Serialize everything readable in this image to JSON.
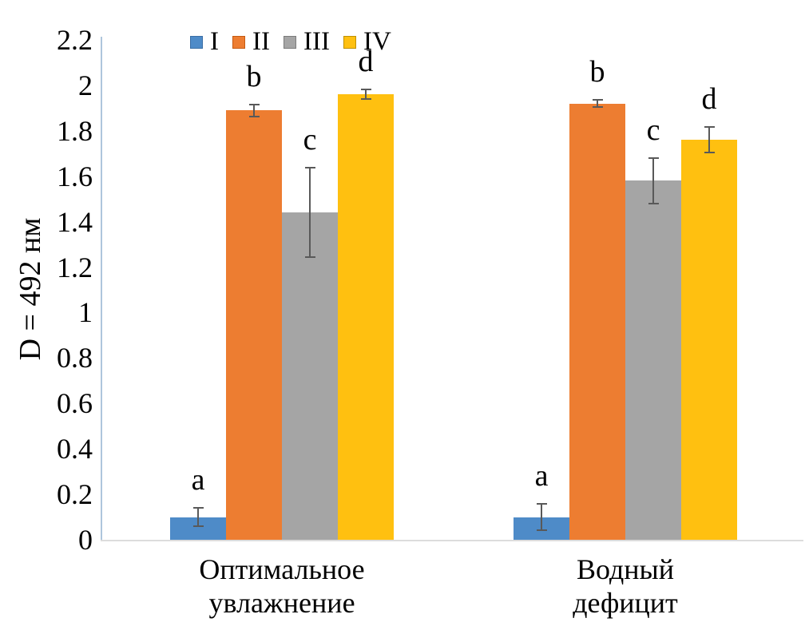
{
  "chart_data": {
    "type": "bar",
    "title": "",
    "xlabel": "",
    "ylabel": "D = 492 нм",
    "ylim": [
      0,
      2.2
    ],
    "ytick_step": 0.2,
    "ytick_labels": [
      "0",
      "0.2",
      "0.4",
      "0.6",
      "0.8",
      "1",
      "1.2",
      "1.4",
      "1.6",
      "1.8",
      "2",
      "2.2"
    ],
    "grid": false,
    "legend_position": "top",
    "categories": [
      [
        "Оптимальное",
        "увлажнение"
      ],
      [
        "Водный",
        "дефицит"
      ]
    ],
    "series": [
      {
        "name": "I",
        "color": "#4E8BC8",
        "edge": "#3A6EA5",
        "values": [
          0.1,
          0.1
        ],
        "errors": [
          0.045,
          0.06
        ],
        "letters": [
          "a",
          "a"
        ]
      },
      {
        "name": "II",
        "color": "#ED7D31",
        "edge": "#C55A11",
        "values": [
          1.89,
          1.92
        ],
        "errors": [
          0.03,
          0.02
        ],
        "letters": [
          "b",
          "b"
        ]
      },
      {
        "name": "III",
        "color": "#A5A5A5",
        "edge": "#7B7B7B",
        "values": [
          1.44,
          1.58
        ],
        "errors": [
          0.2,
          0.105
        ],
        "letters": [
          "c",
          "c"
        ]
      },
      {
        "name": "IV",
        "color": "#FFC010",
        "edge": "#BF9000",
        "values": [
          1.96,
          1.76
        ],
        "errors": [
          0.025,
          0.06
        ],
        "letters": [
          "d",
          "d"
        ]
      }
    ],
    "error_bar_color": "#595959",
    "y_axis_line_color": "#AEC6DC",
    "x_axis_line_color": "#DCDCDC"
  }
}
